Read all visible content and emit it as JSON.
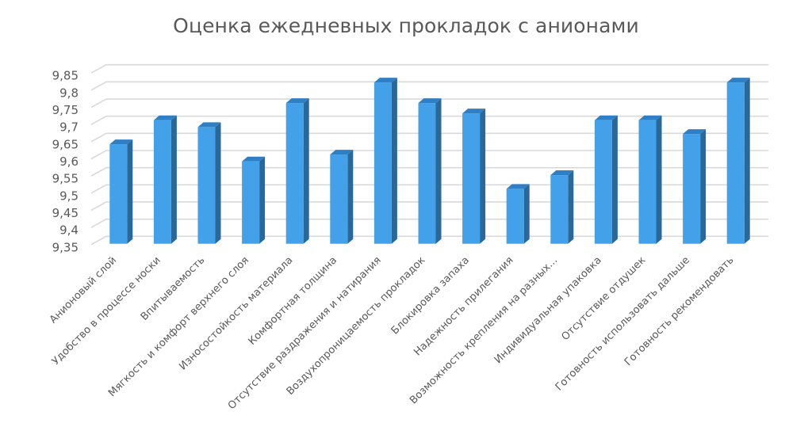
{
  "chart_data": {
    "type": "bar",
    "style": "3d-column",
    "title": "Оценка ежедневных прокладок с анионами",
    "xlabel": "",
    "ylabel": "",
    "ylim": [
      9.35,
      9.85
    ],
    "yticks": [
      "9,35",
      "9,4",
      "9,45",
      "9,5",
      "9,55",
      "9,6",
      "9,65",
      "9,7",
      "9,75",
      "9,8",
      "9,85"
    ],
    "grid": true,
    "legend": null,
    "categories": [
      "Анионовый слой",
      "Удобство в процессе носки",
      "Впитываемость",
      "Мягкость и комфорт верхнего слоя",
      "Износостойкость материала",
      "Комфортная толщина",
      "Отсутствие раздражения и натирания",
      "Воздухопроницаемость прокладок",
      "Блокировка запаха",
      "Надежность прилегания",
      "Возможность крепления на разных...",
      "Индивидуальная упаковка",
      "Отсутствие отдушек",
      "Готовность использовать дальше",
      "Готовность рекомендовать"
    ],
    "values": [
      9.64,
      9.71,
      9.69,
      9.59,
      9.76,
      9.61,
      9.82,
      9.76,
      9.73,
      9.51,
      9.55,
      9.71,
      9.71,
      9.67,
      9.82
    ],
    "colors": {
      "bar_front": "#42A1E8",
      "bar_top": "#2F7FC4",
      "bar_side": "#2A6899",
      "gridline": "#D9D9D9",
      "text": "#595959"
    }
  }
}
